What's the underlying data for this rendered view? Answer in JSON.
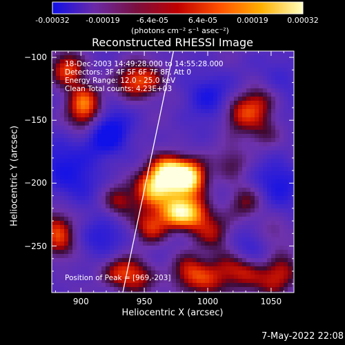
{
  "colorbar": {
    "ticks": [
      "-0.00032",
      "-0.00019",
      "-6.4e-05",
      "6.4e-05",
      "0.00019",
      "0.00032"
    ],
    "unit": "(photons cm⁻² s⁻¹ asec⁻²)",
    "colors": [
      "#1010e8",
      "#6a2aa8",
      "#7a1040",
      "#c00000",
      "#ff5000",
      "#ffb000",
      "#ffffc0"
    ]
  },
  "title": "Reconstructed RHESSI Image",
  "annotations": {
    "time": "18-Dec-2003 14:49:28.000 to 14:55:28.000",
    "detectors": "Detectors: 3F 4F 5F 6F 7F 8F, Att 0",
    "energy": "Energy Range: 12.0 - 25.0 keV",
    "clean": "Clean       Total counts: 4.23E+03",
    "peak": "Position of Peak = [969,-203]"
  },
  "timestamp": "7-May-2022 22:08",
  "chart_data": {
    "type": "heatmap",
    "title": "Reconstructed RHESSI Image",
    "xlabel": "Heliocentric X (arcsec)",
    "ylabel": "Heliocentric Y (arcsec)",
    "xlim": [
      877,
      1068
    ],
    "ylim": [
      -287,
      -95
    ],
    "x_ticks": [
      900,
      950,
      1000,
      1050
    ],
    "y_ticks": [
      -100,
      -150,
      -200,
      -250
    ],
    "colorbar_range": [
      -0.00032,
      0.00032
    ],
    "peak": {
      "x": 969,
      "y": -203
    },
    "limb": [
      [
        933,
        -287
      ],
      [
        973,
        -95
      ]
    ],
    "sources": [
      {
        "x": 968,
        "y": -192,
        "level": 1.0
      },
      {
        "x": 985,
        "y": -196,
        "level": 0.95
      },
      {
        "x": 955,
        "y": -205,
        "level": 0.7
      },
      {
        "x": 975,
        "y": -222,
        "level": 0.75
      },
      {
        "x": 990,
        "y": -225,
        "level": 0.6
      },
      {
        "x": 955,
        "y": -235,
        "level": 0.5
      },
      {
        "x": 930,
        "y": -215,
        "level": 0.45
      },
      {
        "x": 1005,
        "y": -240,
        "level": 0.35
      },
      {
        "x": 890,
        "y": -110,
        "level": 0.6
      },
      {
        "x": 902,
        "y": -135,
        "level": 0.55
      },
      {
        "x": 905,
        "y": -150,
        "level": 0.4
      },
      {
        "x": 940,
        "y": -120,
        "level": 0.45
      },
      {
        "x": 955,
        "y": -118,
        "level": 0.4
      },
      {
        "x": 1025,
        "y": -145,
        "level": 0.45
      },
      {
        "x": 1040,
        "y": -135,
        "level": 0.4
      },
      {
        "x": 1045,
        "y": -160,
        "level": 0.3
      },
      {
        "x": 1020,
        "y": -185,
        "level": 0.3
      },
      {
        "x": 1030,
        "y": -215,
        "level": 0.35
      },
      {
        "x": 1050,
        "y": -240,
        "level": 0.3
      },
      {
        "x": 930,
        "y": -270,
        "level": 0.45
      },
      {
        "x": 945,
        "y": -275,
        "level": 0.45
      },
      {
        "x": 985,
        "y": -270,
        "level": 0.45
      },
      {
        "x": 1000,
        "y": -280,
        "level": 0.4
      },
      {
        "x": 1015,
        "y": -268,
        "level": 0.35
      },
      {
        "x": 1030,
        "y": -270,
        "level": 0.4
      },
      {
        "x": 1060,
        "y": -270,
        "level": 0.35
      },
      {
        "x": 1050,
        "y": -280,
        "level": 0.3
      },
      {
        "x": 880,
        "y": -235,
        "level": 0.4
      },
      {
        "x": 885,
        "y": -250,
        "level": 0.35
      },
      {
        "x": 900,
        "y": -200,
        "level": -0.3
      },
      {
        "x": 920,
        "y": -160,
        "level": -0.55
      },
      {
        "x": 880,
        "y": -180,
        "level": -0.3
      },
      {
        "x": 1000,
        "y": -130,
        "level": -0.35
      },
      {
        "x": 1055,
        "y": -200,
        "level": -0.4
      },
      {
        "x": 1060,
        "y": -120,
        "level": -0.2
      },
      {
        "x": 920,
        "y": -245,
        "level": -0.3
      },
      {
        "x": 1035,
        "y": -250,
        "level": -0.25
      }
    ]
  }
}
